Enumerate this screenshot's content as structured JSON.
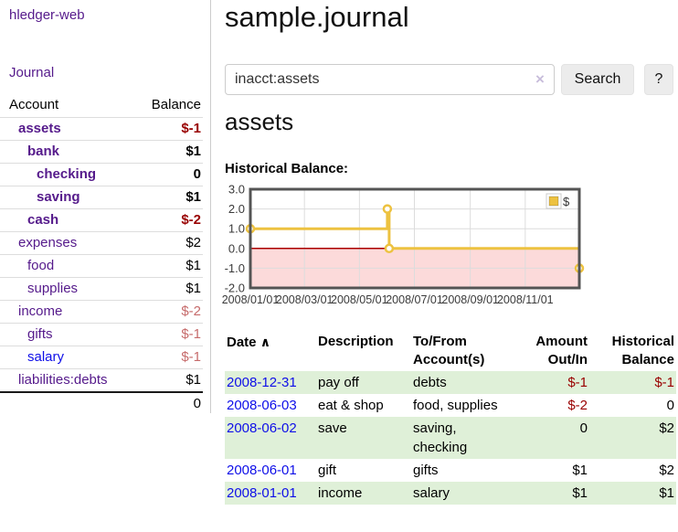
{
  "colors": {
    "purple_link": "#551A8B",
    "blue_link": "#0f0fe8",
    "negative_strong": "#990000",
    "negative_soft": "#c66b6b",
    "row_stripe_green": "#dff0d8",
    "button_background": "#ececec",
    "series_gold": "#edc240"
  },
  "sidebar": {
    "brand": "hledger-web",
    "nav_journal": "Journal",
    "table_headers": {
      "account": "Account",
      "balance": "Balance"
    },
    "accounts": [
      {
        "name": "assets",
        "level": 1,
        "bold": true,
        "balance": "$-1",
        "balance_style": "negative-strong",
        "link_color": "purple"
      },
      {
        "name": "bank",
        "level": 2,
        "bold": true,
        "balance": "$1",
        "balance_style": "normal-strong",
        "link_color": "purple"
      },
      {
        "name": "checking",
        "level": 3,
        "bold": true,
        "balance": "0",
        "balance_style": "normal-strong",
        "link_color": "purple"
      },
      {
        "name": "saving",
        "level": 3,
        "bold": true,
        "balance": "$1",
        "balance_style": "normal-strong",
        "link_color": "purple"
      },
      {
        "name": "cash",
        "level": 2,
        "bold": true,
        "balance": "$-2",
        "balance_style": "negative-strong",
        "link_color": "purple"
      },
      {
        "name": "expenses",
        "level": 1,
        "bold": false,
        "balance": "$2",
        "balance_style": "normal",
        "link_color": "purple"
      },
      {
        "name": "food",
        "level": 2,
        "bold": false,
        "balance": "$1",
        "balance_style": "normal",
        "link_color": "purple"
      },
      {
        "name": "supplies",
        "level": 2,
        "bold": false,
        "balance": "$1",
        "balance_style": "normal",
        "link_color": "purple"
      },
      {
        "name": "income",
        "level": 1,
        "bold": false,
        "balance": "$-2",
        "balance_style": "negative-soft",
        "link_color": "purple"
      },
      {
        "name": "gifts",
        "level": 2,
        "bold": false,
        "balance": "$-1",
        "balance_style": "negative-soft",
        "link_color": "purple"
      },
      {
        "name": "salary",
        "level": 2,
        "bold": false,
        "balance": "$-1",
        "balance_style": "negative-soft",
        "link_color": "blue"
      },
      {
        "name": "liabilities:debts",
        "level": 1,
        "bold": false,
        "balance": "$1",
        "balance_style": "normal",
        "link_color": "purple"
      }
    ],
    "total": "0"
  },
  "header": {
    "title": "sample.journal"
  },
  "search": {
    "value": "inacct:assets",
    "clear_icon": "×",
    "button_label": "Search",
    "help_label": "?"
  },
  "account_page": {
    "heading": "assets",
    "chart_label": "Historical Balance:"
  },
  "chart_data": {
    "type": "line",
    "title": "Historical Balance:",
    "step": true,
    "series": [
      {
        "name": "$",
        "color": "#edc240",
        "points": [
          [
            "2008-01-01",
            1
          ],
          [
            "2008-06-01",
            2
          ],
          [
            "2008-06-03",
            0
          ],
          [
            "2008-12-31",
            -1
          ]
        ]
      }
    ],
    "x_range": [
      "2008-01-01",
      "2008-12-31"
    ],
    "ylim": [
      -2,
      3
    ],
    "y_ticks": [
      3,
      2,
      1,
      0,
      -1,
      -2
    ],
    "x_ticks": [
      {
        "label": "2008/01/01",
        "date": "2008-01-01"
      },
      {
        "label": "2008/03/01",
        "date": "2008-03-01"
      },
      {
        "label": "2008/05/01",
        "date": "2008-05-01"
      },
      {
        "label": "2008/07/01",
        "date": "2008-07-01"
      },
      {
        "label": "2008/09/01",
        "date": "2008-09-01"
      },
      {
        "label": "2008/11/01",
        "date": "2008-11-01"
      }
    ],
    "grid": true,
    "gridline_color": "#dcdcdc",
    "border_color": "#545454",
    "negative_region_color": "#fcdada",
    "zero_line_color": "#aa0000",
    "legend": {
      "label": "$",
      "position": "top-right"
    }
  },
  "register": {
    "headers": {
      "date": "Date",
      "sort_icon": "∧",
      "description": "Description",
      "account": "To/From Account(s)",
      "amount": "Amount Out/In",
      "balance": "Historical Balance"
    },
    "rows": [
      {
        "date": "2008-12-31",
        "description": "pay off",
        "account": "debts",
        "amount": "$-1",
        "amount_negative": true,
        "balance": "$-1",
        "balance_negative": true
      },
      {
        "date": "2008-06-03",
        "description": "eat & shop",
        "account": "food, supplies",
        "amount": "$-2",
        "amount_negative": true,
        "balance": "0",
        "balance_negative": false
      },
      {
        "date": "2008-06-02",
        "description": "save",
        "account": "saving, checking",
        "amount": "0",
        "amount_negative": false,
        "balance": "$2",
        "balance_negative": false
      },
      {
        "date": "2008-06-01",
        "description": "gift",
        "account": "gifts",
        "amount": "$1",
        "amount_negative": false,
        "balance": "$2",
        "balance_negative": false
      },
      {
        "date": "2008-01-01",
        "description": "income",
        "account": "salary",
        "amount": "$1",
        "amount_negative": false,
        "balance": "$1",
        "balance_negative": false
      }
    ]
  }
}
